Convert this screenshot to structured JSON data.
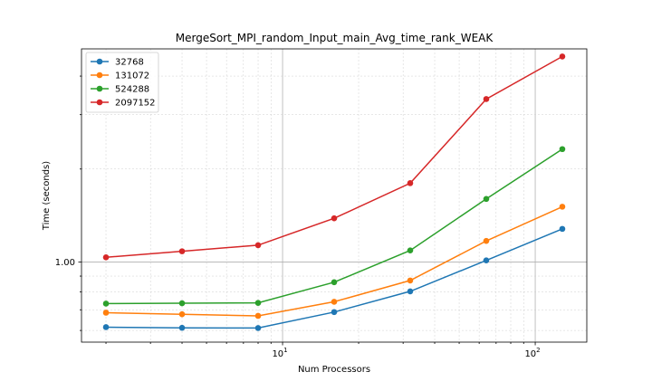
{
  "chart_data": {
    "type": "line",
    "title": "MergeSort_MPI_random_Input_main_Avg_time_rank_WEAK",
    "xlabel": "Num Processors",
    "ylabel": "Time (seconds)",
    "xscale": "log",
    "yscale": "log",
    "x": [
      2,
      4,
      8,
      16,
      32,
      64,
      128
    ],
    "xlim": [
      1.6,
      160
    ],
    "ylim": [
      0.55,
      4.9
    ],
    "x_ticks": [
      {
        "value": 10,
        "base": "10",
        "exp": "1"
      },
      {
        "value": 100,
        "base": "10",
        "exp": "2"
      }
    ],
    "y_ticks": [
      {
        "value": 1.0,
        "label": "1.00"
      }
    ],
    "grid": true,
    "legend_position": "top-left",
    "series": [
      {
        "name": "32768",
        "color": "#1f77b4",
        "values": [
          0.615,
          0.612,
          0.611,
          0.688,
          0.803,
          1.012,
          1.28
        ]
      },
      {
        "name": "131072",
        "color": "#ff7f0e",
        "values": [
          0.685,
          0.677,
          0.669,
          0.743,
          0.871,
          1.17,
          1.51
        ]
      },
      {
        "name": "524288",
        "color": "#2ca02c",
        "values": [
          0.733,
          0.735,
          0.737,
          0.86,
          1.09,
          1.6,
          2.32
        ]
      },
      {
        "name": "2097152",
        "color": "#d62728",
        "values": [
          1.035,
          1.083,
          1.133,
          1.385,
          1.8,
          3.37,
          4.63
        ]
      }
    ]
  }
}
